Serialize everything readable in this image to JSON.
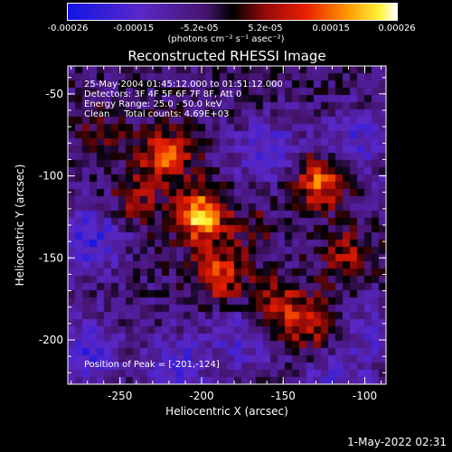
{
  "colorbar": {
    "tick_labels": [
      "-0.00026",
      "-0.00015",
      "-5.2e-05",
      "5.2e-05",
      "0.00015",
      "0.00026"
    ],
    "unit_label": "(photons cm⁻² s⁻¹ asec⁻²)",
    "range": [
      -0.00026,
      0.00026
    ]
  },
  "plot": {
    "title": "Reconstructed RHESSI Image",
    "xlabel": "Heliocentric X (arcsec)",
    "ylabel": "Heliocentric Y (arcsec)",
    "x_ticks": [
      "-250",
      "-200",
      "-150",
      "-100"
    ],
    "y_ticks": [
      "-50",
      "-100",
      "-150",
      "-200"
    ],
    "xlim": [
      -282,
      -87
    ],
    "ylim": [
      -227,
      -33
    ]
  },
  "info": {
    "time_range": "25-May-2004 01:45:12.000 to 01:51:12.000",
    "detectors": "Detectors: 3F 4F 5F 6F 7F 8F, Att 0",
    "energy": "Energy Range: 25.0 - 50.0 keV",
    "clean": "Clean     Total counts: 4.69E+03",
    "peak": "Position of Peak = [-201,-124]"
  },
  "footer": {
    "timestamp": "1-May-2022 02:31"
  },
  "chart_data": {
    "type": "heatmap",
    "title": "Reconstructed RHESSI Image",
    "xlabel": "Heliocentric X (arcsec)",
    "ylabel": "Heliocentric Y (arcsec)",
    "xlim": [
      -282,
      -87
    ],
    "ylim": [
      -227,
      -33
    ],
    "peak": [
      -201,
      -124
    ],
    "hot_spots": [
      {
        "x": -201,
        "y": -124,
        "value": 0.00026
      },
      {
        "x": -222,
        "y": -88,
        "value": 0.00018
      },
      {
        "x": -128,
        "y": -103,
        "value": 0.0002
      },
      {
        "x": -190,
        "y": -160,
        "value": 0.00017
      },
      {
        "x": -155,
        "y": -178,
        "value": 0.00012
      },
      {
        "x": -135,
        "y": -190,
        "value": 0.00014
      },
      {
        "x": -110,
        "y": -148,
        "value": 0.00011
      },
      {
        "x": -240,
        "y": -115,
        "value": 9e-05
      },
      {
        "x": -262,
        "y": -75,
        "value": 6e-05
      },
      {
        "x": -170,
        "y": -130,
        "value": 5e-05
      }
    ],
    "cold_spots": [
      {
        "x": -268,
        "y": -140,
        "value": -0.00024
      },
      {
        "x": -270,
        "y": -205,
        "value": -0.00022
      },
      {
        "x": -215,
        "y": -215,
        "value": -0.0002
      },
      {
        "x": -105,
        "y": -80,
        "value": -0.00018
      },
      {
        "x": -160,
        "y": -85,
        "value": -0.0002
      },
      {
        "x": -118,
        "y": -225,
        "value": -0.00016
      },
      {
        "x": -175,
        "y": -200,
        "value": -0.00015
      },
      {
        "x": -95,
        "y": -195,
        "value": -0.00014
      }
    ]
  }
}
